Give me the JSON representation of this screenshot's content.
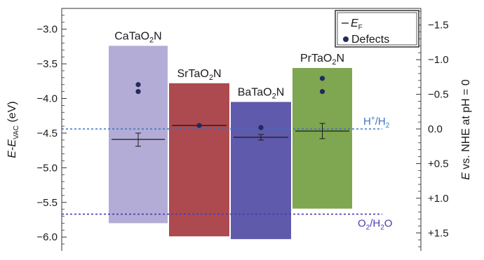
{
  "chart_data": {
    "type": "bar",
    "subtype": "floating-band-diagram",
    "y_left": {
      "label_main": "E",
      "label_dash": "-",
      "label_sub_e": "E",
      "label_sub": "VAC",
      "label_unit": " (eV)",
      "lim": [
        -6.2,
        -2.7
      ],
      "ticks": [
        -3.0,
        -3.5,
        -4.0,
        -4.5,
        -5.0,
        -5.5,
        -6.0
      ],
      "tick_labels": [
        "−3.0",
        "−3.5",
        "−4.0",
        "−4.5",
        "−5.0",
        "−5.5",
        "−6.0"
      ]
    },
    "y_right": {
      "label_e": "E",
      "label_rest": " vs. NHE at pH = 0",
      "ticks": [
        -1.5,
        -1.0,
        -0.5,
        0.0,
        0.5,
        1.0,
        1.5
      ],
      "tick_labels": [
        "−1.5",
        "−1.0",
        "−0.5",
        "0.0",
        "+0.5",
        "+1.0",
        "+1.5"
      ],
      "offset_to_left": -4.44
    },
    "materials": [
      {
        "name": "CaTaO",
        "sub": "2",
        "tail": "N",
        "color": "#b3acd6",
        "band_top": -3.24,
        "band_bottom": -5.8,
        "fermi": -4.59,
        "fermi_err": [
          -4.5,
          -4.69
        ],
        "defects": [
          -3.8,
          -3.9
        ]
      },
      {
        "name": "SrTaO",
        "sub": "2",
        "tail": "N",
        "color": "#ad4a4f",
        "band_top": -3.78,
        "band_bottom": -5.99,
        "fermi": -4.39,
        "fermi_err": null,
        "defects": [
          -4.39
        ]
      },
      {
        "name": "BaTaO",
        "sub": "2",
        "tail": "N",
        "color": "#5f5aab",
        "band_top": -4.05,
        "band_bottom": -6.03,
        "fermi": -4.56,
        "fermi_err": [
          -4.52,
          -4.6
        ],
        "defects": [
          -4.42
        ]
      },
      {
        "name": "PrTaO",
        "sub": "2",
        "tail": "N",
        "color": "#7fa650",
        "band_top": -3.56,
        "band_bottom": -5.59,
        "fermi": -4.47,
        "fermi_err": [
          -4.36,
          -4.58
        ],
        "defects": [
          -3.71,
          -3.9
        ]
      }
    ],
    "reference_lines": [
      {
        "label_main": "H",
        "label_sup": "+",
        "label_rest": "/H",
        "label_sub": "2",
        "value": -4.44,
        "color": "#3a73c6"
      },
      {
        "label_main": "O",
        "label_sub": "2",
        "label_rest": "/H",
        "label_sub2": "2",
        "label_tail": "O",
        "value": -5.67,
        "color": "#4a3ab0"
      }
    ],
    "legend": {
      "position": "top-right",
      "items": [
        {
          "label_main": "E",
          "label_sub": "F",
          "marker": "line"
        },
        {
          "label": "Defects",
          "marker": "dot"
        }
      ]
    },
    "colors": {
      "defect_dot": "#232a5c",
      "axis": "#333333"
    }
  }
}
